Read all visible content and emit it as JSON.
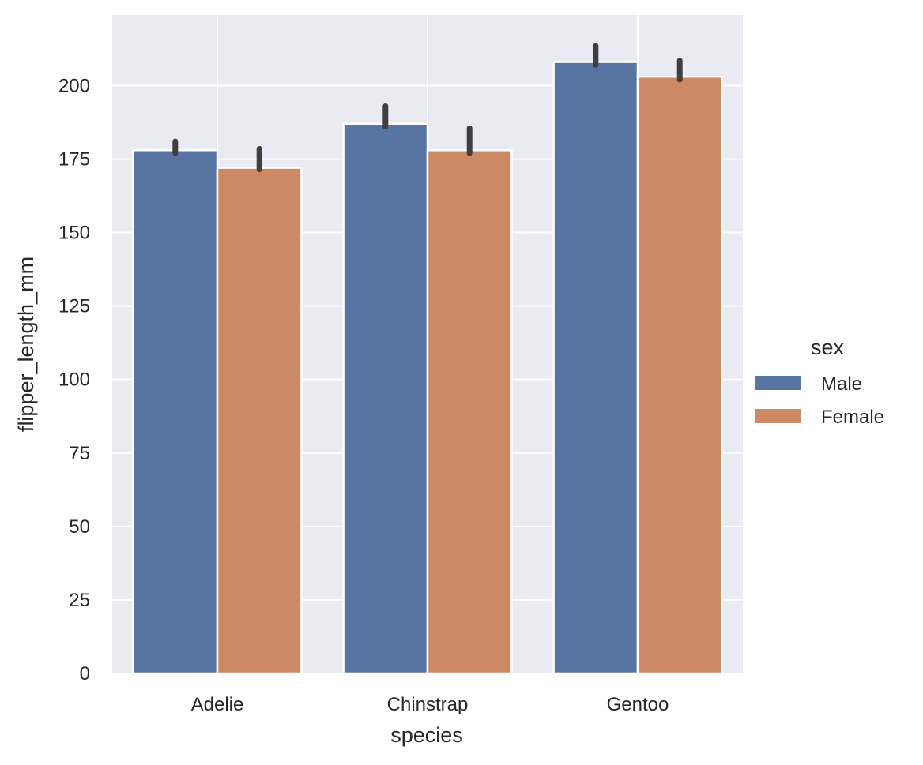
{
  "chart_data": {
    "type": "bar",
    "xlabel": "species",
    "ylabel": "flipper_length_mm",
    "categories": [
      "Adelie",
      "Chinstrap",
      "Gentoo"
    ],
    "ylim": [
      0,
      224
    ],
    "yticks": [
      0,
      25,
      50,
      75,
      100,
      125,
      150,
      175,
      200
    ],
    "grid": true,
    "legend": {
      "title": "sex",
      "placement": "right"
    },
    "series": [
      {
        "name": "Male",
        "color": "#5874a3",
        "values": [
          178,
          187,
          208
        ],
        "error_low": [
          177,
          186,
          207
        ],
        "error_high": [
          181,
          193,
          213.5
        ]
      },
      {
        "name": "Female",
        "color": "#cc8963",
        "values": [
          172,
          178,
          203
        ],
        "error_low": [
          171.5,
          177,
          202
        ],
        "error_high": [
          178.5,
          185.5,
          208.5
        ]
      }
    ],
    "colors": {
      "plot_background": "#eaeaf2",
      "grid": "#ffffff",
      "error_bar": "#3f3f3f",
      "text": "#262626"
    }
  }
}
